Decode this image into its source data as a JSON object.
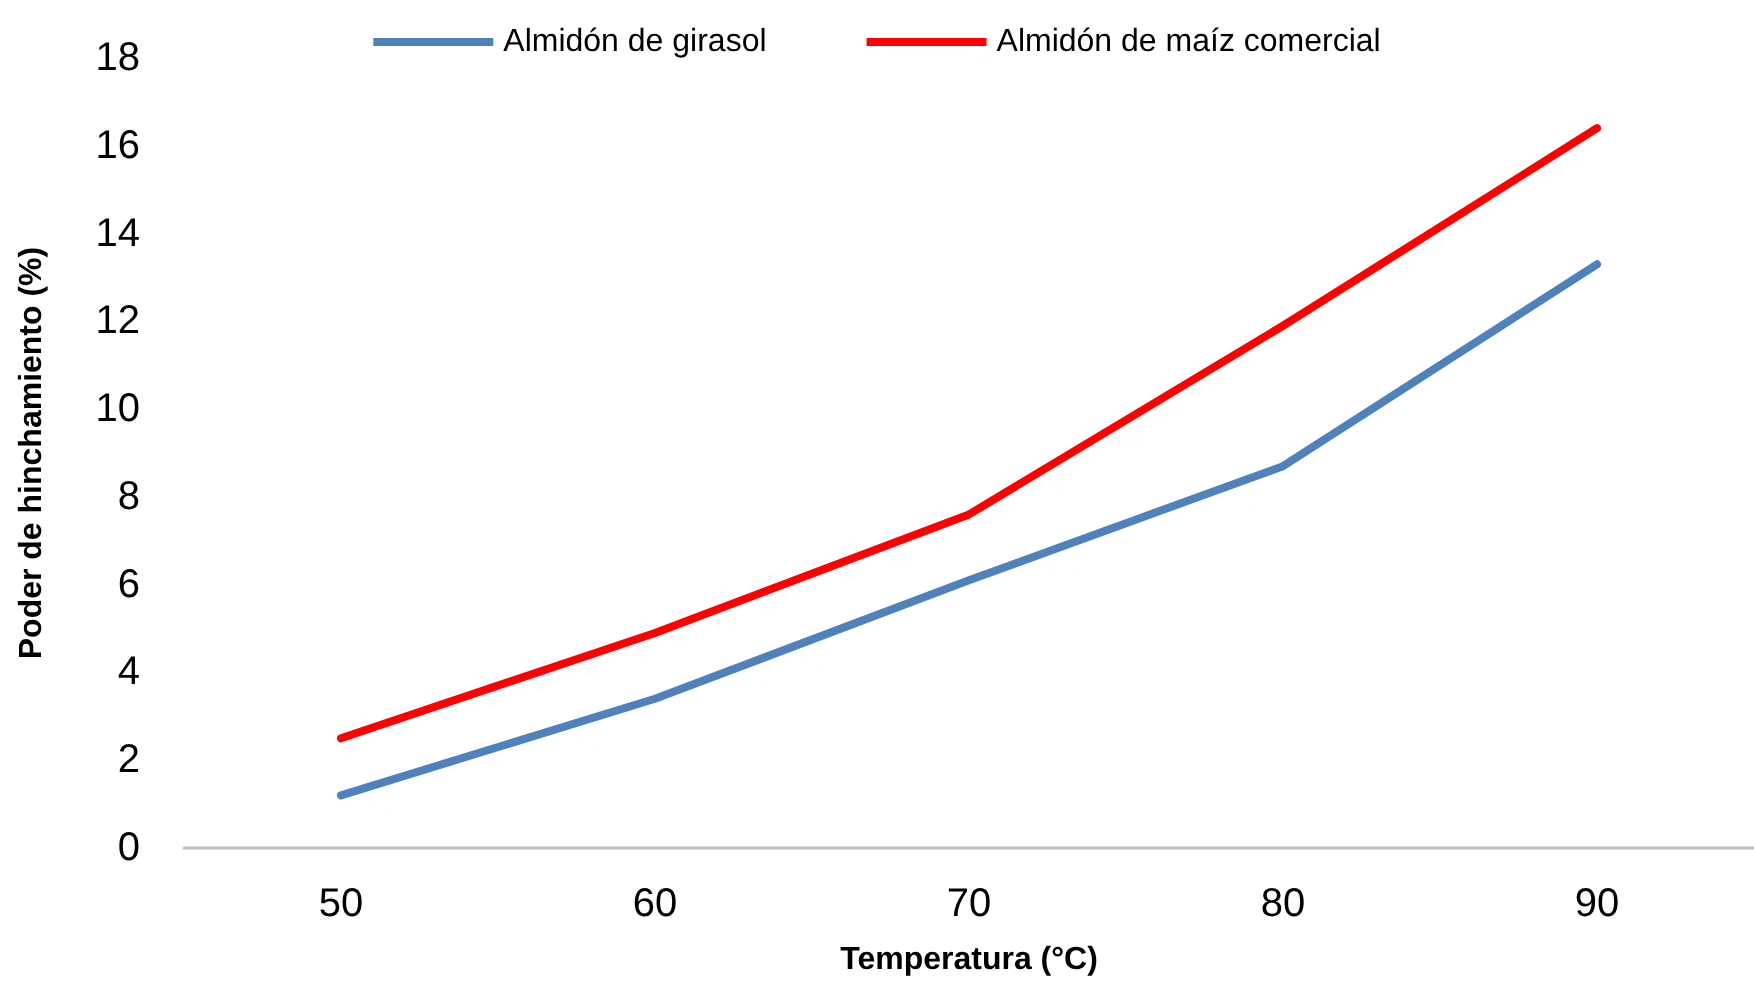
{
  "chart_data": {
    "type": "line",
    "xlabel": "Temperatura (°C)",
    "ylabel": "Poder de hinchamiento (%)",
    "categories": [
      "50",
      "60",
      "70",
      "80",
      "90"
    ],
    "series": [
      {
        "name": "Almidón de girasol",
        "color": "#4f81bd",
        "values": [
          1.2,
          3.4,
          6.1,
          8.7,
          13.3
        ]
      },
      {
        "name": "Almidón de maíz comercial",
        "color": "#ff0000",
        "values": [
          2.5,
          4.9,
          7.6,
          11.9,
          16.4
        ]
      }
    ],
    "ylim": [
      0,
      18
    ],
    "yticks": [
      0,
      2,
      4,
      6,
      8,
      10,
      12,
      14,
      16,
      18
    ],
    "grid": false,
    "legend": "top",
    "marker": "none",
    "line_style": "solid"
  }
}
